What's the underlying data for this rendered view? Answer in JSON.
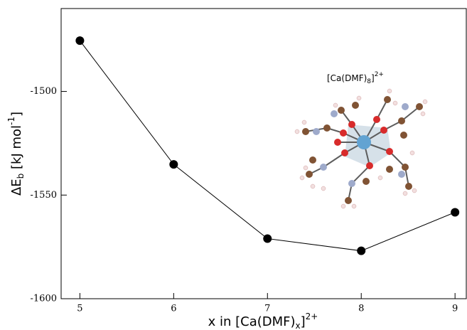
{
  "chart_data": {
    "type": "line",
    "x_label": {
      "main": "x in [Ca(DMF)",
      "sub": "x",
      "end": "]",
      "sup": "2+"
    },
    "y_label": {
      "main": "ΔE",
      "sub": "b",
      "unit": " [kJ mol",
      "sup": "-1",
      "end": "]"
    },
    "inset_label": {
      "main": "[Ca(DMF)",
      "sub": "8",
      "end": "]",
      "sup": "2+"
    },
    "x": [
      5,
      6,
      7,
      8,
      9
    ],
    "series": [
      {
        "color": "#000000",
        "values": [
          -1475.5,
          -1535.2,
          -1571.0,
          -1576.9,
          -1558.3
        ]
      }
    ],
    "xlim": [
      4.8,
      9.12
    ],
    "xticks": [
      5,
      6,
      7,
      8,
      9
    ],
    "ylim": [
      -1600,
      -1460
    ],
    "yticks": [
      -1600,
      -1550,
      -1500
    ]
  }
}
